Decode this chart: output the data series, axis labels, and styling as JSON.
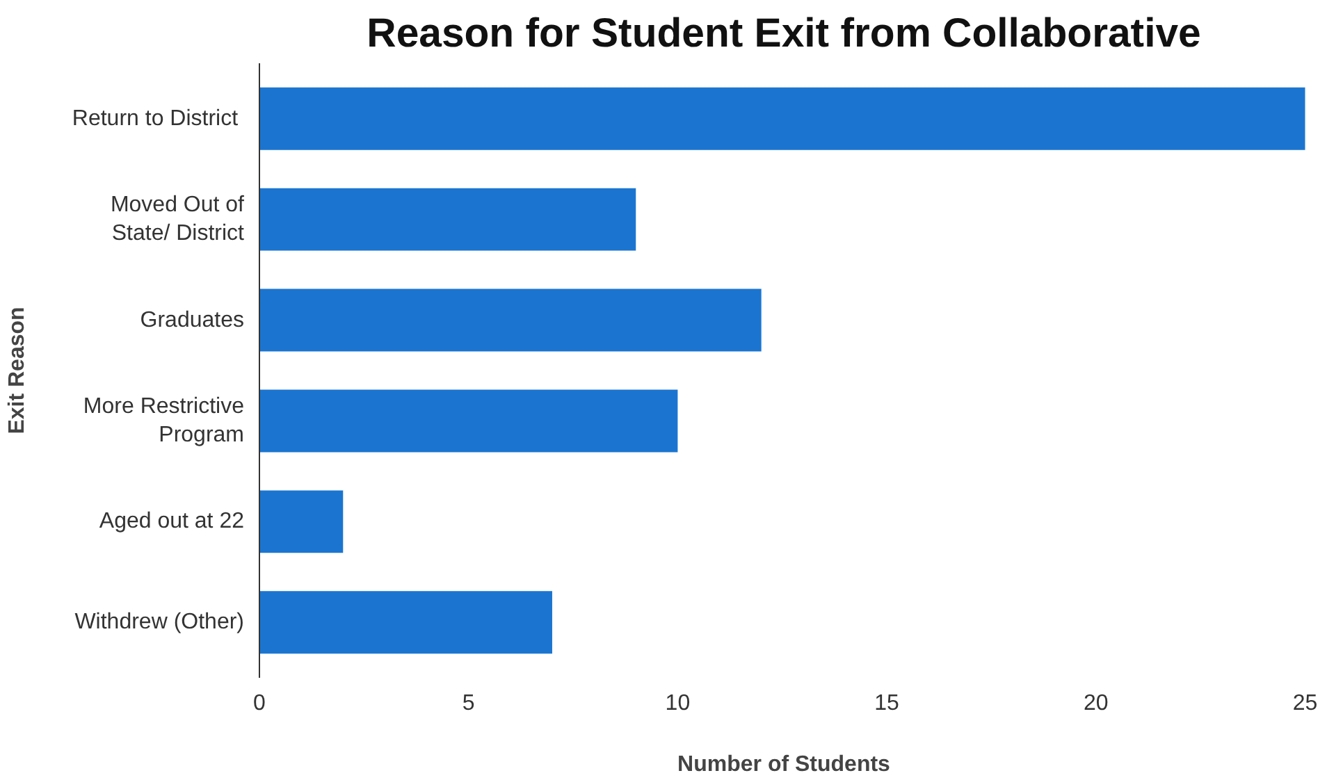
{
  "chart_data": {
    "type": "bar",
    "orientation": "horizontal",
    "title": "Reason for Student Exit from Collaborative",
    "xlabel": "Number of Students",
    "ylabel": "Exit Reason",
    "categories": [
      "Return to  District",
      "Moved Out of\nState/ District",
      "Graduates",
      "More Restrictive\nProgram",
      "Aged out at 22",
      "Withdrew (Other)"
    ],
    "values": [
      25,
      9,
      12,
      10,
      2,
      7
    ],
    "color": "#1b75d0",
    "xlim": [
      0,
      25
    ],
    "xticks": [
      0,
      5,
      10,
      15,
      20,
      25
    ],
    "grid": false
  }
}
